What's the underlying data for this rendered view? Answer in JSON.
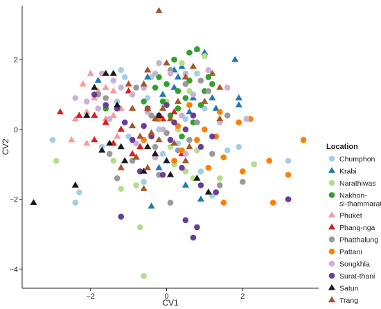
{
  "chart_data": {
    "type": "scatter",
    "xlabel": "CV1",
    "ylabel": "CV2",
    "xlim": [
      -3.8,
      4.0
    ],
    "ylim": [
      -4.55,
      3.55
    ],
    "x_ticks": [
      -2,
      0,
      2
    ],
    "y_ticks": [
      -4,
      -2,
      0,
      2
    ],
    "grid": false,
    "legend": {
      "title": "Location",
      "placement": "right"
    },
    "series": [
      {
        "name": "Chumphon",
        "marker": "circle",
        "color": "#a6cee3",
        "points": [
          [
            -1.1,
            1.5
          ],
          [
            -1.2,
            1.7
          ],
          [
            -0.4,
            1.5
          ],
          [
            0.8,
            1.6
          ],
          [
            -2.3,
            -1.8
          ],
          [
            -2.4,
            -2.1
          ],
          [
            -3.0,
            -0.3
          ],
          [
            -1.7,
            -0.5
          ],
          [
            -1.3,
            0.8
          ],
          [
            1.0,
            0.6
          ],
          [
            0.3,
            -0.4
          ],
          [
            -0.1,
            -0.7
          ],
          [
            1.6,
            -0.6
          ],
          [
            1.9,
            -0.5
          ],
          [
            1.2,
            -1.9
          ],
          [
            -0.6,
            -1.5
          ],
          [
            3.2,
            -0.9
          ],
          [
            -0.2,
            0.0
          ],
          [
            0.5,
            0.3
          ],
          [
            -1.0,
            -0.2
          ],
          [
            0.9,
            -1.2
          ],
          [
            -0.5,
            0.9
          ]
        ]
      },
      {
        "name": "Krabi",
        "marker": "triangle",
        "color": "#1f78b4",
        "points": [
          [
            0.8,
            2.3
          ],
          [
            1.0,
            2.2
          ],
          [
            0.4,
            1.8
          ],
          [
            0.2,
            1.7
          ],
          [
            1.8,
            2.0
          ],
          [
            1.9,
            0.9
          ],
          [
            1.9,
            0.7
          ],
          [
            1.2,
            0.9
          ],
          [
            1.3,
            0.6
          ],
          [
            0.7,
            0.9
          ],
          [
            0.2,
            1.2
          ],
          [
            -0.1,
            1.0
          ],
          [
            -0.5,
            1.5
          ],
          [
            0.9,
            -2.0
          ],
          [
            0.5,
            -1.6
          ],
          [
            -0.2,
            -1.1
          ],
          [
            -0.4,
            -2.2
          ],
          [
            0.3,
            1.5
          ],
          [
            -1.8,
            1.4
          ],
          [
            0.6,
            0.5
          ]
        ]
      },
      {
        "name": "Narathiwas",
        "marker": "circle",
        "color": "#b2df8a",
        "points": [
          [
            -2.9,
            -0.9
          ],
          [
            -1.4,
            -0.9
          ],
          [
            -1.3,
            -1.4
          ],
          [
            -0.7,
            -2.8
          ],
          [
            -0.6,
            -4.2
          ],
          [
            0.5,
            -1.2
          ],
          [
            0.7,
            -1.4
          ],
          [
            1.0,
            2.1
          ],
          [
            0.3,
            0.0
          ],
          [
            0.1,
            -0.5
          ],
          [
            0.2,
            -1.0
          ],
          [
            0.4,
            1.9
          ],
          [
            -0.8,
            -1.6
          ],
          [
            -1.2,
            -1.7
          ],
          [
            0.8,
            -0.6
          ],
          [
            1.4,
            -1.4
          ],
          [
            2.3,
            -1.0
          ],
          [
            0.0,
            0.8
          ],
          [
            -0.3,
            0.3
          ],
          [
            0.6,
            1.1
          ]
        ]
      },
      {
        "name": "Nakhon-si-thammarat",
        "marker": "circle",
        "color": "#33a02c",
        "points": [
          [
            0.8,
            2.3
          ],
          [
            0.6,
            2.2
          ],
          [
            0.2,
            2.0
          ],
          [
            -0.2,
            1.5
          ],
          [
            -0.3,
            1.2
          ],
          [
            0.0,
            1.3
          ],
          [
            0.3,
            1.1
          ],
          [
            0.6,
            1.4
          ],
          [
            1.1,
            1.5
          ],
          [
            1.0,
            1.1
          ],
          [
            -0.1,
            0.8
          ],
          [
            0.3,
            0.6
          ],
          [
            -1.6,
            0.6
          ],
          [
            0.1,
            0.4
          ],
          [
            0.5,
            0.9
          ],
          [
            0.9,
            0.7
          ],
          [
            0.4,
            -0.2
          ],
          [
            1.2,
            1.3
          ],
          [
            -0.6,
            0.8
          ],
          [
            0.7,
            0.2
          ]
        ]
      },
      {
        "name": "Phuket",
        "marker": "triangle",
        "color": "#fb9a99",
        "points": [
          [
            -2.0,
            1.6
          ],
          [
            -1.8,
            1.1
          ],
          [
            -1.6,
            1.2
          ],
          [
            -1.4,
            1.1
          ],
          [
            -2.1,
            0.5
          ],
          [
            -2.4,
            0.3
          ],
          [
            -2.5,
            -0.3
          ],
          [
            -2.1,
            -0.4
          ],
          [
            -1.6,
            0.3
          ],
          [
            -1.4,
            0.4
          ],
          [
            -1.3,
            -0.2
          ],
          [
            -1.9,
            0.9
          ],
          [
            -1.2,
            0.6
          ],
          [
            -2.2,
            1.3
          ]
        ]
      },
      {
        "name": "Phang-nga",
        "marker": "triangle",
        "color": "#e31a1c",
        "points": [
          [
            -2.8,
            0.5
          ],
          [
            -2.3,
            0.4
          ],
          [
            -1.9,
            0.4
          ],
          [
            -1.6,
            0.2
          ],
          [
            -1.9,
            -0.3
          ],
          [
            -1.4,
            -0.4
          ],
          [
            -0.7,
            -0.5
          ],
          [
            -1.0,
            1.1
          ],
          [
            -1.2,
            0.0
          ],
          [
            0.4,
            -0.7
          ],
          [
            0.2,
            0.5
          ],
          [
            -0.1,
            0.3
          ],
          [
            -0.9,
            -0.7
          ]
        ]
      },
      {
        "name": "Phatthalung",
        "marker": "circle",
        "color": "#999999",
        "points": [
          [
            -1.8,
            1.0
          ],
          [
            -1.6,
            0.9
          ],
          [
            -0.8,
            1.2
          ],
          [
            0.1,
            1.7
          ],
          [
            0.5,
            1.3
          ],
          [
            0.9,
            1.4
          ],
          [
            1.1,
            1.1
          ],
          [
            -1.3,
            -1.4
          ],
          [
            -0.9,
            -0.9
          ],
          [
            -0.3,
            -0.5
          ],
          [
            0.3,
            -0.6
          ],
          [
            1.2,
            -0.7
          ],
          [
            2.0,
            -1.5
          ],
          [
            1.4,
            -1.6
          ],
          [
            0.1,
            -2.1
          ],
          [
            -0.2,
            -1.3
          ],
          [
            0.6,
            -0.3
          ],
          [
            -1.5,
            -0.7
          ],
          [
            0.8,
            0.2
          ],
          [
            1.6,
            0.4
          ],
          [
            -0.4,
            0.4
          ],
          [
            0.0,
            -0.1
          ]
        ]
      },
      {
        "name": "Pattani",
        "marker": "circle",
        "color": "#ff7f00",
        "points": [
          [
            3.6,
            -0.3
          ],
          [
            2.7,
            -0.9
          ],
          [
            2.8,
            -2.1
          ],
          [
            3.2,
            -1.3
          ],
          [
            1.5,
            -2.1
          ],
          [
            2.0,
            -1.2
          ],
          [
            2.2,
            0.3
          ],
          [
            1.9,
            0.2
          ],
          [
            1.3,
            -0.2
          ],
          [
            1.1,
            -1.1
          ],
          [
            0.4,
            -0.6
          ],
          [
            0.6,
            0.7
          ],
          [
            -0.2,
            0.3
          ],
          [
            0.3,
            0.1
          ],
          [
            1.4,
            0.5
          ],
          [
            1.0,
            0.0
          ],
          [
            0.8,
            -0.3
          ],
          [
            1.5,
            -0.8
          ],
          [
            -0.6,
            -0.3
          ],
          [
            0.2,
            -0.9
          ]
        ]
      },
      {
        "name": "Songkhla",
        "marker": "circle",
        "color": "#cab2d6",
        "points": [
          [
            -1.7,
            1.6
          ],
          [
            -1.2,
            1.2
          ],
          [
            -0.9,
            1.0
          ],
          [
            -0.6,
            1.2
          ],
          [
            -0.3,
            1.6
          ],
          [
            -0.2,
            1.9
          ],
          [
            0.1,
            1.6
          ],
          [
            0.5,
            1.6
          ],
          [
            1.1,
            1.7
          ],
          [
            -2.4,
            0.9
          ],
          [
            -2.1,
            0.8
          ],
          [
            -1.5,
            0.3
          ],
          [
            -1.8,
            0.6
          ],
          [
            -0.5,
            0.5
          ],
          [
            -0.1,
            0.0
          ],
          [
            0.4,
            0.4
          ],
          [
            1.4,
            0.2
          ],
          [
            1.6,
            1.2
          ],
          [
            2.1,
            0.3
          ],
          [
            -0.8,
            -0.4
          ],
          [
            -0.3,
            -0.8
          ],
          [
            0.5,
            -0.7
          ],
          [
            -1.4,
            1.4
          ],
          [
            0.7,
            1.0
          ]
        ]
      },
      {
        "name": "Surat-thani",
        "marker": "circle",
        "color": "#6a3d9a",
        "points": [
          [
            -1.9,
            1.0
          ],
          [
            -1.6,
            0.7
          ],
          [
            -1.3,
            0.6
          ],
          [
            -1.1,
            0.2
          ],
          [
            -0.9,
            -0.3
          ],
          [
            -0.6,
            0.1
          ],
          [
            -0.5,
            0.6
          ],
          [
            -0.2,
            0.4
          ],
          [
            0.0,
            0.7
          ],
          [
            0.2,
            0.2
          ],
          [
            0.5,
            0.0
          ],
          [
            0.7,
            0.4
          ],
          [
            0.9,
            -0.5
          ],
          [
            1.2,
            -0.2
          ],
          [
            1.3,
            -1.8
          ],
          [
            0.9,
            -1.6
          ],
          [
            0.4,
            -1.1
          ],
          [
            -0.1,
            -1.3
          ],
          [
            -0.7,
            -1.2
          ],
          [
            -1.2,
            -2.5
          ],
          [
            0.5,
            -2.6
          ],
          [
            0.8,
            -2.8
          ],
          [
            0.7,
            -3.1
          ],
          [
            3.2,
            -2.0
          ],
          [
            -0.4,
            -0.2
          ],
          [
            0.1,
            -0.3
          ]
        ]
      },
      {
        "name": "Satun",
        "marker": "triangle",
        "color": "#1a1a1a",
        "points": [
          [
            -3.5,
            -2.1
          ],
          [
            -2.4,
            -1.6
          ],
          [
            -1.6,
            1.6
          ],
          [
            -1.9,
            1.2
          ],
          [
            -1.4,
            1.6
          ],
          [
            -2.1,
            0.4
          ],
          [
            -1.7,
            -0.6
          ],
          [
            -1.5,
            -0.4
          ],
          [
            -1.2,
            -0.5
          ],
          [
            -1.1,
            -0.9
          ],
          [
            -0.8,
            -0.8
          ],
          [
            -0.5,
            -0.5
          ],
          [
            -0.3,
            -0.7
          ],
          [
            0.0,
            -0.9
          ],
          [
            0.1,
            -1.3
          ],
          [
            -0.6,
            -1.2
          ],
          [
            0.8,
            -1.4
          ],
          [
            1.1,
            -1.8
          ],
          [
            -1.3,
            0.7
          ],
          [
            -0.2,
            0.4
          ]
        ]
      },
      {
        "name": "Trang",
        "marker": "triangle",
        "color": "#a6562b",
        "points": [
          [
            -0.2,
            3.4
          ],
          [
            -0.5,
            1.7
          ],
          [
            0.0,
            1.9
          ],
          [
            0.7,
            1.8
          ],
          [
            1.2,
            1.6
          ],
          [
            0.5,
            1.5
          ],
          [
            -0.6,
            1.3
          ],
          [
            0.3,
            0.8
          ],
          [
            -0.1,
            0.6
          ],
          [
            -0.5,
            0.6
          ],
          [
            -0.3,
            0.3
          ],
          [
            0.1,
            0.3
          ],
          [
            -0.9,
            0.1
          ],
          [
            -0.7,
            -0.2
          ],
          [
            -0.4,
            -0.1
          ],
          [
            -0.2,
            -0.3
          ],
          [
            0.2,
            -0.4
          ],
          [
            0.6,
            -0.5
          ],
          [
            -0.8,
            -0.8
          ],
          [
            -0.5,
            -1.1
          ],
          [
            -1.2,
            -1.1
          ],
          [
            -0.6,
            -1.7
          ],
          [
            0.5,
            -0.9
          ],
          [
            1.4,
            0.3
          ],
          [
            1.0,
            0.8
          ],
          [
            1.4,
            1.2
          ],
          [
            -1.0,
            1.3
          ],
          [
            -0.9,
            0.6
          ]
        ]
      }
    ]
  }
}
